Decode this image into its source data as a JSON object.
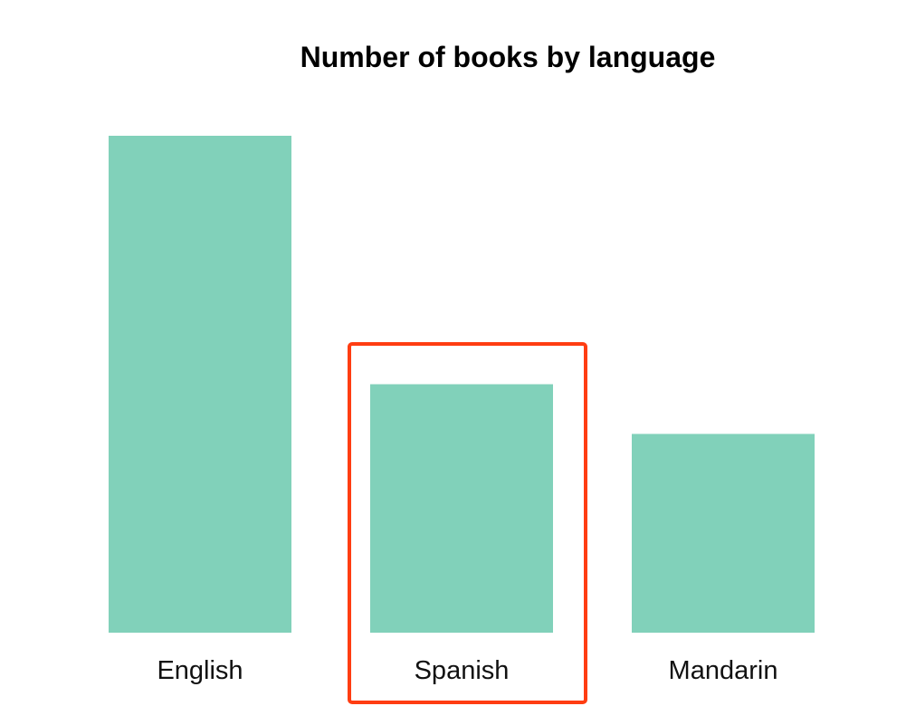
{
  "chart_data": {
    "type": "bar",
    "title": "Number of books by language",
    "xlabel": "",
    "ylabel": "",
    "categories": [
      "English",
      "Spanish",
      "Mandarin"
    ],
    "values": [
      10,
      5,
      4
    ],
    "ylim": [
      0,
      10
    ],
    "grid": false,
    "axes_visible": false,
    "highlighted_category": "Spanish",
    "colors": {
      "bar": "#81d1ba",
      "highlight": "#ff3d12",
      "title": "#000000",
      "label": "#111111"
    }
  }
}
